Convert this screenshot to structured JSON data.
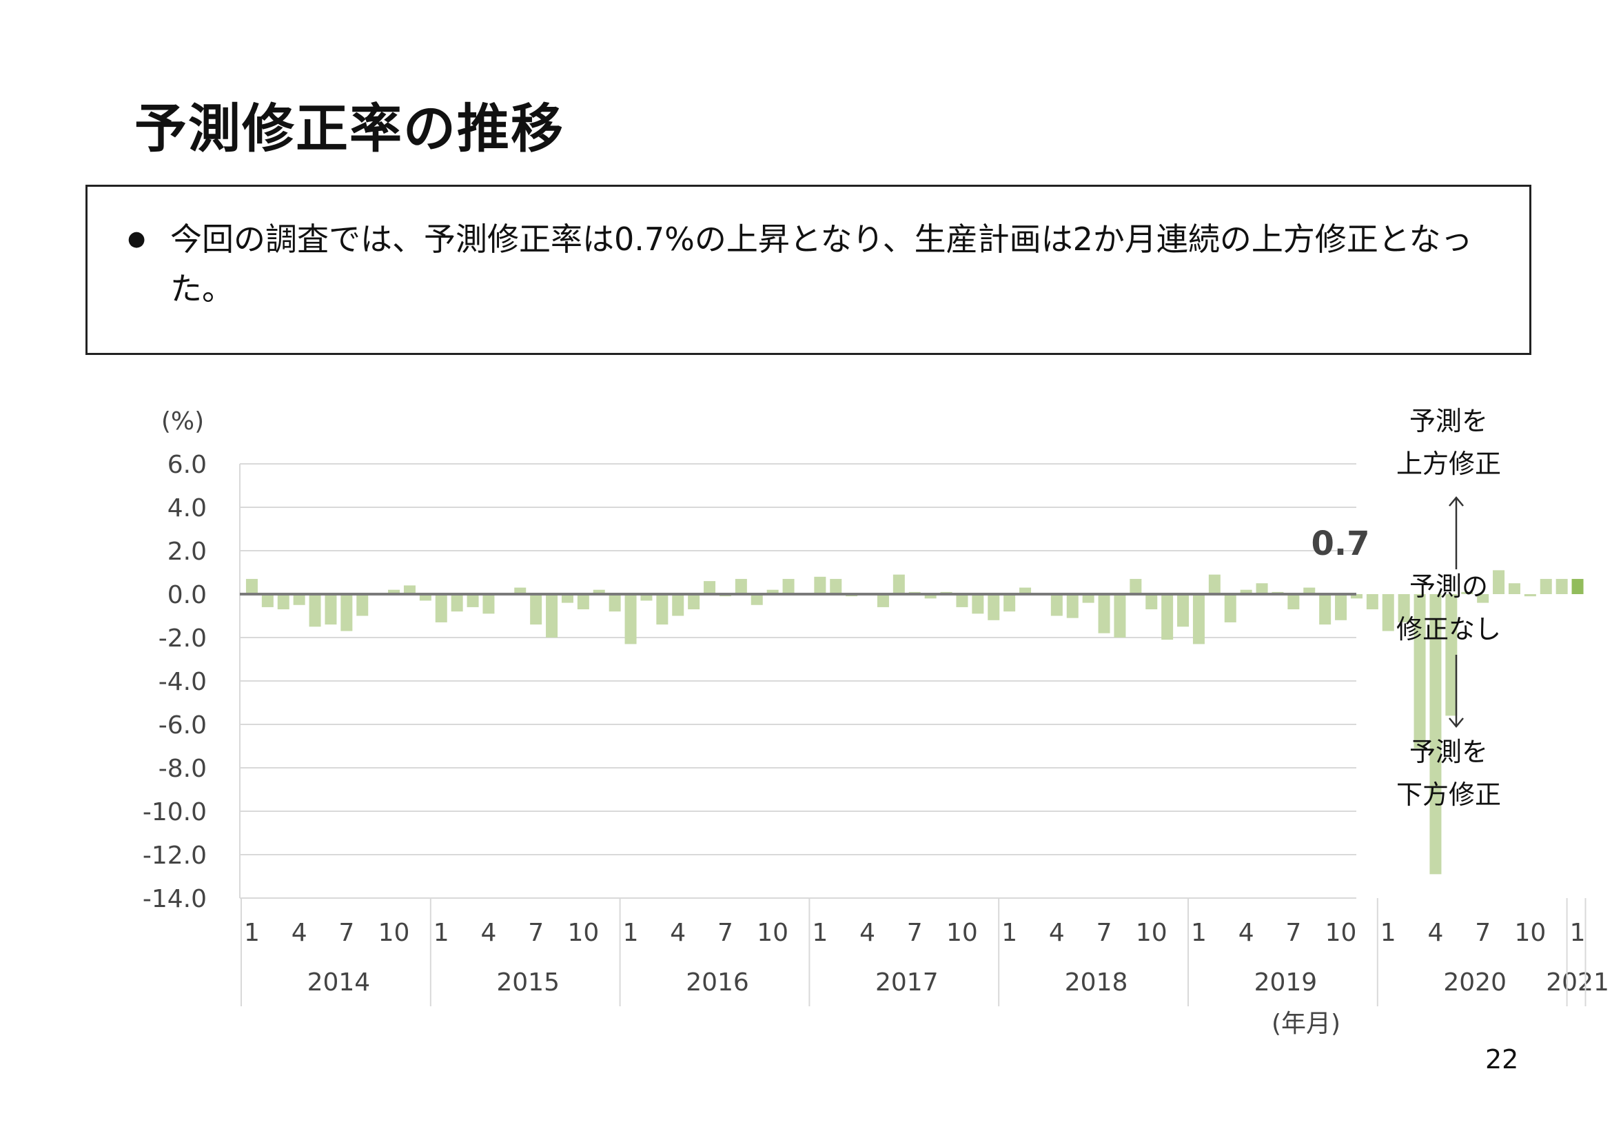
{
  "page": {
    "title": "予測修正率の推移",
    "summary": "今回の調査では、予測修正率は0.7%の上昇となり、生産計画は2か月連続の上方修正となった。",
    "page_number": "22"
  },
  "annotations": {
    "upward": "予測を\n上方修正",
    "none": "予測の\n修正なし",
    "downward": "予測を\n下方修正",
    "latest_value_label": "0.7"
  },
  "colors": {
    "bar": "#c5d9a8",
    "bar_latest": "#92bc5c",
    "zero_line": "#7a7a7a",
    "grid": "#d9d9d9"
  },
  "chart_data": {
    "type": "bar",
    "y_unit_label": "(%)",
    "x_unit_label": "(年月)",
    "ylim": [
      -14,
      6
    ],
    "yticks": [
      "6.0",
      "4.0",
      "2.0",
      "0.0",
      "-2.0",
      "-4.0",
      "-6.0",
      "-8.0",
      "-10.0",
      "-12.0",
      "-14.0"
    ],
    "grid": true,
    "month_ticks": [
      "1",
      "4",
      "7",
      "10"
    ],
    "years": [
      "2014",
      "2015",
      "2016",
      "2017",
      "2018",
      "2019",
      "2020",
      "2021"
    ],
    "x": [
      "2014-01",
      "2014-02",
      "2014-03",
      "2014-04",
      "2014-05",
      "2014-06",
      "2014-07",
      "2014-08",
      "2014-09",
      "2014-10",
      "2014-11",
      "2014-12",
      "2015-01",
      "2015-02",
      "2015-03",
      "2015-04",
      "2015-05",
      "2015-06",
      "2015-07",
      "2015-08",
      "2015-09",
      "2015-10",
      "2015-11",
      "2015-12",
      "2016-01",
      "2016-02",
      "2016-03",
      "2016-04",
      "2016-05",
      "2016-06",
      "2016-07",
      "2016-08",
      "2016-09",
      "2016-10",
      "2016-11",
      "2016-12",
      "2017-01",
      "2017-02",
      "2017-03",
      "2017-04",
      "2017-05",
      "2017-06",
      "2017-07",
      "2017-08",
      "2017-09",
      "2017-10",
      "2017-11",
      "2017-12",
      "2018-01",
      "2018-02",
      "2018-03",
      "2018-04",
      "2018-05",
      "2018-06",
      "2018-07",
      "2018-08",
      "2018-09",
      "2018-10",
      "2018-11",
      "2018-12",
      "2019-01",
      "2019-02",
      "2019-03",
      "2019-04",
      "2019-05",
      "2019-06",
      "2019-07",
      "2019-08",
      "2019-09",
      "2019-10",
      "2019-11",
      "2019-12",
      "2020-01",
      "2020-02",
      "2020-03",
      "2020-04",
      "2020-05",
      "2020-06",
      "2020-07",
      "2020-08",
      "2020-09",
      "2020-10",
      "2020-11",
      "2020-12",
      "2021-01"
    ],
    "values": [
      0.7,
      -0.6,
      -0.7,
      -0.5,
      -1.5,
      -1.4,
      -1.7,
      -1.0,
      0.0,
      0.2,
      0.4,
      -0.3,
      -1.3,
      -0.8,
      -0.6,
      -0.9,
      0.0,
      0.3,
      -1.4,
      -2.0,
      -0.4,
      -0.7,
      0.2,
      -0.8,
      -2.3,
      -0.3,
      -1.4,
      -1.0,
      -0.7,
      0.6,
      -0.1,
      0.7,
      -0.5,
      0.2,
      0.7,
      0.0,
      0.8,
      0.7,
      -0.1,
      0.0,
      -0.6,
      0.9,
      0.1,
      -0.2,
      0.1,
      -0.6,
      -0.9,
      -1.2,
      -0.8,
      0.3,
      0.0,
      -1.0,
      -1.1,
      -0.4,
      -1.8,
      -2.0,
      0.7,
      -0.7,
      -2.1,
      -1.5,
      -2.3,
      0.9,
      -1.3,
      0.2,
      0.5,
      0.1,
      -0.7,
      0.3,
      -1.4,
      -1.2,
      -0.2,
      -0.7,
      -1.7,
      -1.3,
      -7.1,
      -12.9,
      -5.6,
      0.1,
      -0.4,
      1.1,
      0.5,
      -0.1,
      0.7,
      0.7,
      0.7
    ]
  }
}
